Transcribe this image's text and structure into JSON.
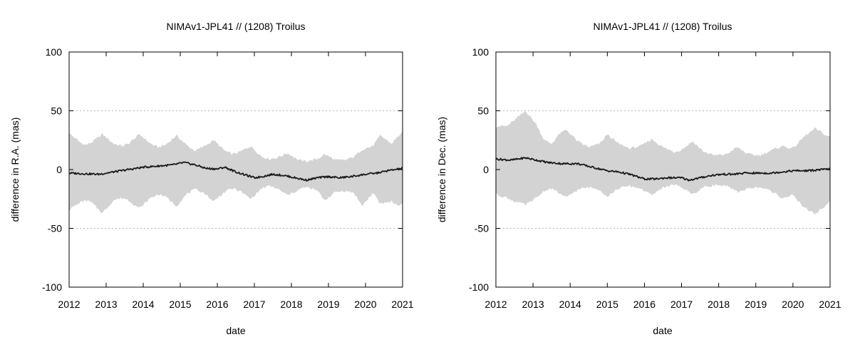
{
  "chart_data": [
    {
      "type": "area",
      "title": "NIMAv1-JPL41 // (1208) Troilus",
      "xlabel": "date",
      "ylabel": "difference in R.A. (mas)",
      "xlim": [
        2012,
        2021
      ],
      "ylim": [
        -100,
        100
      ],
      "xticks": [
        "2012",
        "2013",
        "2014",
        "2015",
        "2016",
        "2017",
        "2018",
        "2019",
        "2020",
        "2021"
      ],
      "yticks": [
        "100",
        "50",
        "0",
        "-50",
        "-100"
      ],
      "gridlines_y": [
        50,
        0,
        -50
      ],
      "colors": {
        "band": "#d3d3d3",
        "line": "#1a1a1a",
        "grid": "#b8b8b8"
      },
      "series": [
        {
          "name": "uncertainty-envelope",
          "x": [
            2012.0,
            2012.3,
            2012.45,
            2012.6,
            2012.9,
            2013.2,
            2013.45,
            2013.6,
            2013.9,
            2014.2,
            2014.4,
            2014.6,
            2014.9,
            2015.2,
            2015.4,
            2015.6,
            2015.9,
            2016.2,
            2016.4,
            2016.6,
            2016.9,
            2017.2,
            2017.4,
            2017.6,
            2017.9,
            2018.2,
            2018.4,
            2018.7,
            2018.9,
            2019.2,
            2019.45,
            2019.7,
            2019.9,
            2020.2,
            2020.4,
            2020.7,
            2020.9,
            2021.0
          ],
          "upper": [
            31,
            23,
            21,
            23,
            30,
            22,
            20,
            22,
            30,
            22,
            19,
            21,
            29,
            20,
            16,
            19,
            25,
            16,
            13,
            15,
            20,
            11,
            9,
            10,
            14,
            8,
            7,
            9,
            13,
            8,
            8,
            11,
            17,
            20,
            29,
            22,
            29,
            32
          ],
          "lower": [
            -34,
            -28,
            -26,
            -28,
            -37,
            -26,
            -24,
            -26,
            -33,
            -24,
            -21,
            -23,
            -31,
            -20,
            -17,
            -19,
            -27,
            -19,
            -16,
            -18,
            -25,
            -16,
            -14,
            -16,
            -22,
            -17,
            -15,
            -18,
            -26,
            -19,
            -18,
            -20,
            -31,
            -20,
            -29,
            -27,
            -31,
            -28
          ]
        },
        {
          "name": "difference",
          "x": [
            2012.0,
            2012.4,
            2012.8,
            2013.2,
            2013.6,
            2014.0,
            2014.4,
            2014.8,
            2015.1,
            2015.4,
            2015.7,
            2016.0,
            2016.2,
            2016.5,
            2016.8,
            2017.0,
            2017.2,
            2017.5,
            2017.8,
            2018.1,
            2018.4,
            2018.7,
            2019.0,
            2019.3,
            2019.6,
            2020.0,
            2020.3,
            2020.6,
            2021.0
          ],
          "values": [
            -3,
            -3.5,
            -4,
            -2,
            0,
            2,
            3,
            4,
            6,
            4,
            1,
            0.5,
            2,
            -2,
            -5,
            -7,
            -6,
            -4,
            -5,
            -7,
            -9,
            -7,
            -6,
            -7,
            -6,
            -4,
            -3,
            -1,
            1
          ]
        }
      ]
    },
    {
      "type": "area",
      "title": "NIMAv1-JPL41 // (1208) Troilus",
      "xlabel": "date",
      "ylabel": "difference in Dec. (mas)",
      "xlim": [
        2012,
        2021
      ],
      "ylim": [
        -100,
        100
      ],
      "xticks": [
        "2012",
        "2013",
        "2014",
        "2015",
        "2016",
        "2017",
        "2018",
        "2019",
        "2020",
        "2021"
      ],
      "yticks": [
        "100",
        "50",
        "0",
        "-50",
        "-100"
      ],
      "gridlines_y": [
        50,
        0,
        -50
      ],
      "colors": {
        "band": "#d3d3d3",
        "line": "#1a1a1a",
        "grid": "#b8b8b8"
      },
      "series": [
        {
          "name": "uncertainty-envelope",
          "x": [
            2012.0,
            2012.3,
            2012.5,
            2012.8,
            2013.1,
            2013.3,
            2013.5,
            2013.7,
            2013.9,
            2014.2,
            2014.5,
            2014.8,
            2015.0,
            2015.3,
            2015.6,
            2015.9,
            2016.2,
            2016.5,
            2016.8,
            2017.0,
            2017.3,
            2017.6,
            2017.9,
            2018.2,
            2018.5,
            2018.8,
            2019.1,
            2019.4,
            2019.7,
            2020.0,
            2020.3,
            2020.6,
            2020.9,
            2021.0
          ],
          "upper": [
            37,
            37,
            42,
            50,
            38,
            25,
            22,
            30,
            34,
            24,
            19,
            22,
            30,
            22,
            18,
            20,
            26,
            19,
            15,
            17,
            24,
            15,
            12,
            13,
            19,
            13,
            12,
            16,
            20,
            18,
            28,
            35,
            29,
            28
          ],
          "lower": [
            -21,
            -24,
            -27,
            -30,
            -24,
            -18,
            -16,
            -20,
            -24,
            -17,
            -15,
            -17,
            -23,
            -16,
            -14,
            -16,
            -22,
            -15,
            -13,
            -15,
            -21,
            -15,
            -13,
            -14,
            -19,
            -16,
            -15,
            -18,
            -24,
            -22,
            -32,
            -38,
            -30,
            -27
          ]
        },
        {
          "name": "difference",
          "x": [
            2012.0,
            2012.4,
            2012.8,
            2013.1,
            2013.4,
            2013.8,
            2014.2,
            2014.6,
            2015.0,
            2015.3,
            2015.6,
            2016.0,
            2016.3,
            2016.6,
            2017.0,
            2017.2,
            2017.5,
            2017.8,
            2018.1,
            2018.4,
            2018.7,
            2019.0,
            2019.4,
            2019.7,
            2020.0,
            2020.4,
            2020.8,
            2021.0
          ],
          "values": [
            9,
            8,
            10,
            8,
            6,
            5,
            5,
            2,
            -1,
            -2,
            -4,
            -8,
            -8,
            -7,
            -7,
            -9,
            -7,
            -5,
            -4,
            -4,
            -3,
            -3,
            -3,
            -2,
            -1,
            -1,
            0,
            0.5
          ]
        }
      ]
    }
  ]
}
